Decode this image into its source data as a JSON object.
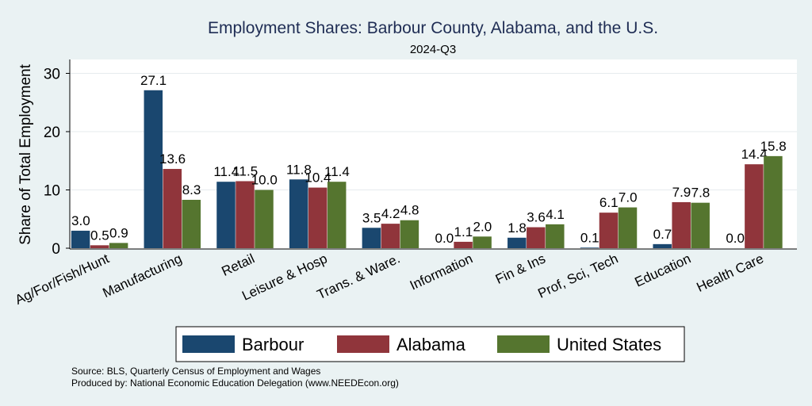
{
  "chart_data": {
    "type": "bar",
    "title": "Employment Shares: Barbour County, Alabama, and the U.S.",
    "subtitle": "2024-Q3",
    "ylabel": "Share of Total Employment",
    "xlabel": "",
    "ylim": [
      0,
      32
    ],
    "yticks": [
      0,
      10,
      20,
      30
    ],
    "grid": true,
    "legend_position": "bottom",
    "categories": [
      "Ag/For/Fish/Hunt",
      "Manufacturing",
      "Retail",
      "Leisure & Hosp",
      "Trans. & Ware.",
      "Information",
      "Fin & Ins",
      "Prof, Sci, Tech",
      "Education",
      "Health Care"
    ],
    "series": [
      {
        "name": "Barbour",
        "color": "#1a476f",
        "values": [
          3.0,
          27.1,
          11.4,
          11.8,
          3.5,
          0.0,
          1.8,
          0.1,
          0.7,
          0.0
        ]
      },
      {
        "name": "Alabama",
        "color": "#90353b",
        "values": [
          0.5,
          13.6,
          11.5,
          10.4,
          4.2,
          1.1,
          3.6,
          6.1,
          7.9,
          14.4
        ]
      },
      {
        "name": "United States",
        "color": "#55752f",
        "values": [
          0.9,
          8.3,
          10.0,
          11.4,
          4.8,
          2.0,
          4.1,
          7.0,
          7.8,
          15.8
        ]
      }
    ],
    "notes": [
      "Source: BLS, Quarterly Census of Employment and Wages",
      "Produced by: National Economic Education Delegation (www.NEEDEcon.org)"
    ]
  }
}
